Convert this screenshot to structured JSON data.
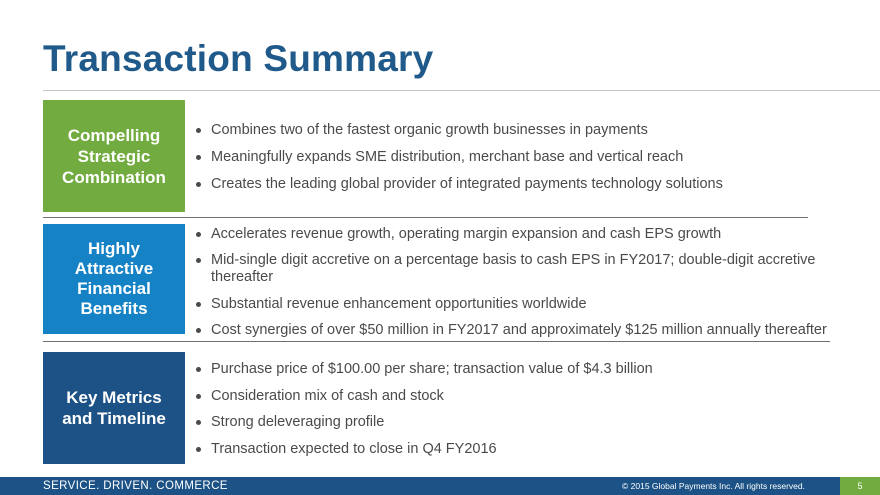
{
  "title": "Transaction Summary",
  "sections": [
    {
      "label_lines": [
        "Compelling",
        "Strategic",
        "Combination"
      ],
      "bullets": [
        "Combines two of the fastest organic growth businesses in payments",
        "Meaningfully expands SME distribution, merchant base and vertical reach",
        "Creates the leading global provider of integrated payments technology solutions"
      ]
    },
    {
      "label_lines": [
        "Highly",
        "Attractive",
        "Financial",
        "Benefits"
      ],
      "bullets": [
        "Accelerates revenue growth, operating margin expansion and cash EPS growth",
        "Mid-single digit accretive on a percentage basis to cash EPS in FY2017; double-digit accretive thereafter",
        "Substantial revenue enhancement opportunities worldwide",
        "Cost synergies of over $50 million in FY2017 and approximately $125 million annually thereafter"
      ]
    },
    {
      "label_lines": [
        "Key Metrics",
        "and Timeline"
      ],
      "bullets": [
        "Purchase price of $100.00 per share; transaction value of $4.3 billion",
        "Consideration mix of cash and stock",
        "Strong deleveraging profile",
        "Transaction expected to close in Q4 FY2016"
      ]
    }
  ],
  "footer": {
    "tagline": "SERVICE. DRIVEN. COMMERCE",
    "copyright": "© 2015 Global Payments Inc. All rights reserved.",
    "page_number": "5"
  },
  "colors": {
    "title": "#1f5a8a",
    "green": "#72ab3f",
    "blue": "#1582c6",
    "navy": "#1c5285"
  }
}
